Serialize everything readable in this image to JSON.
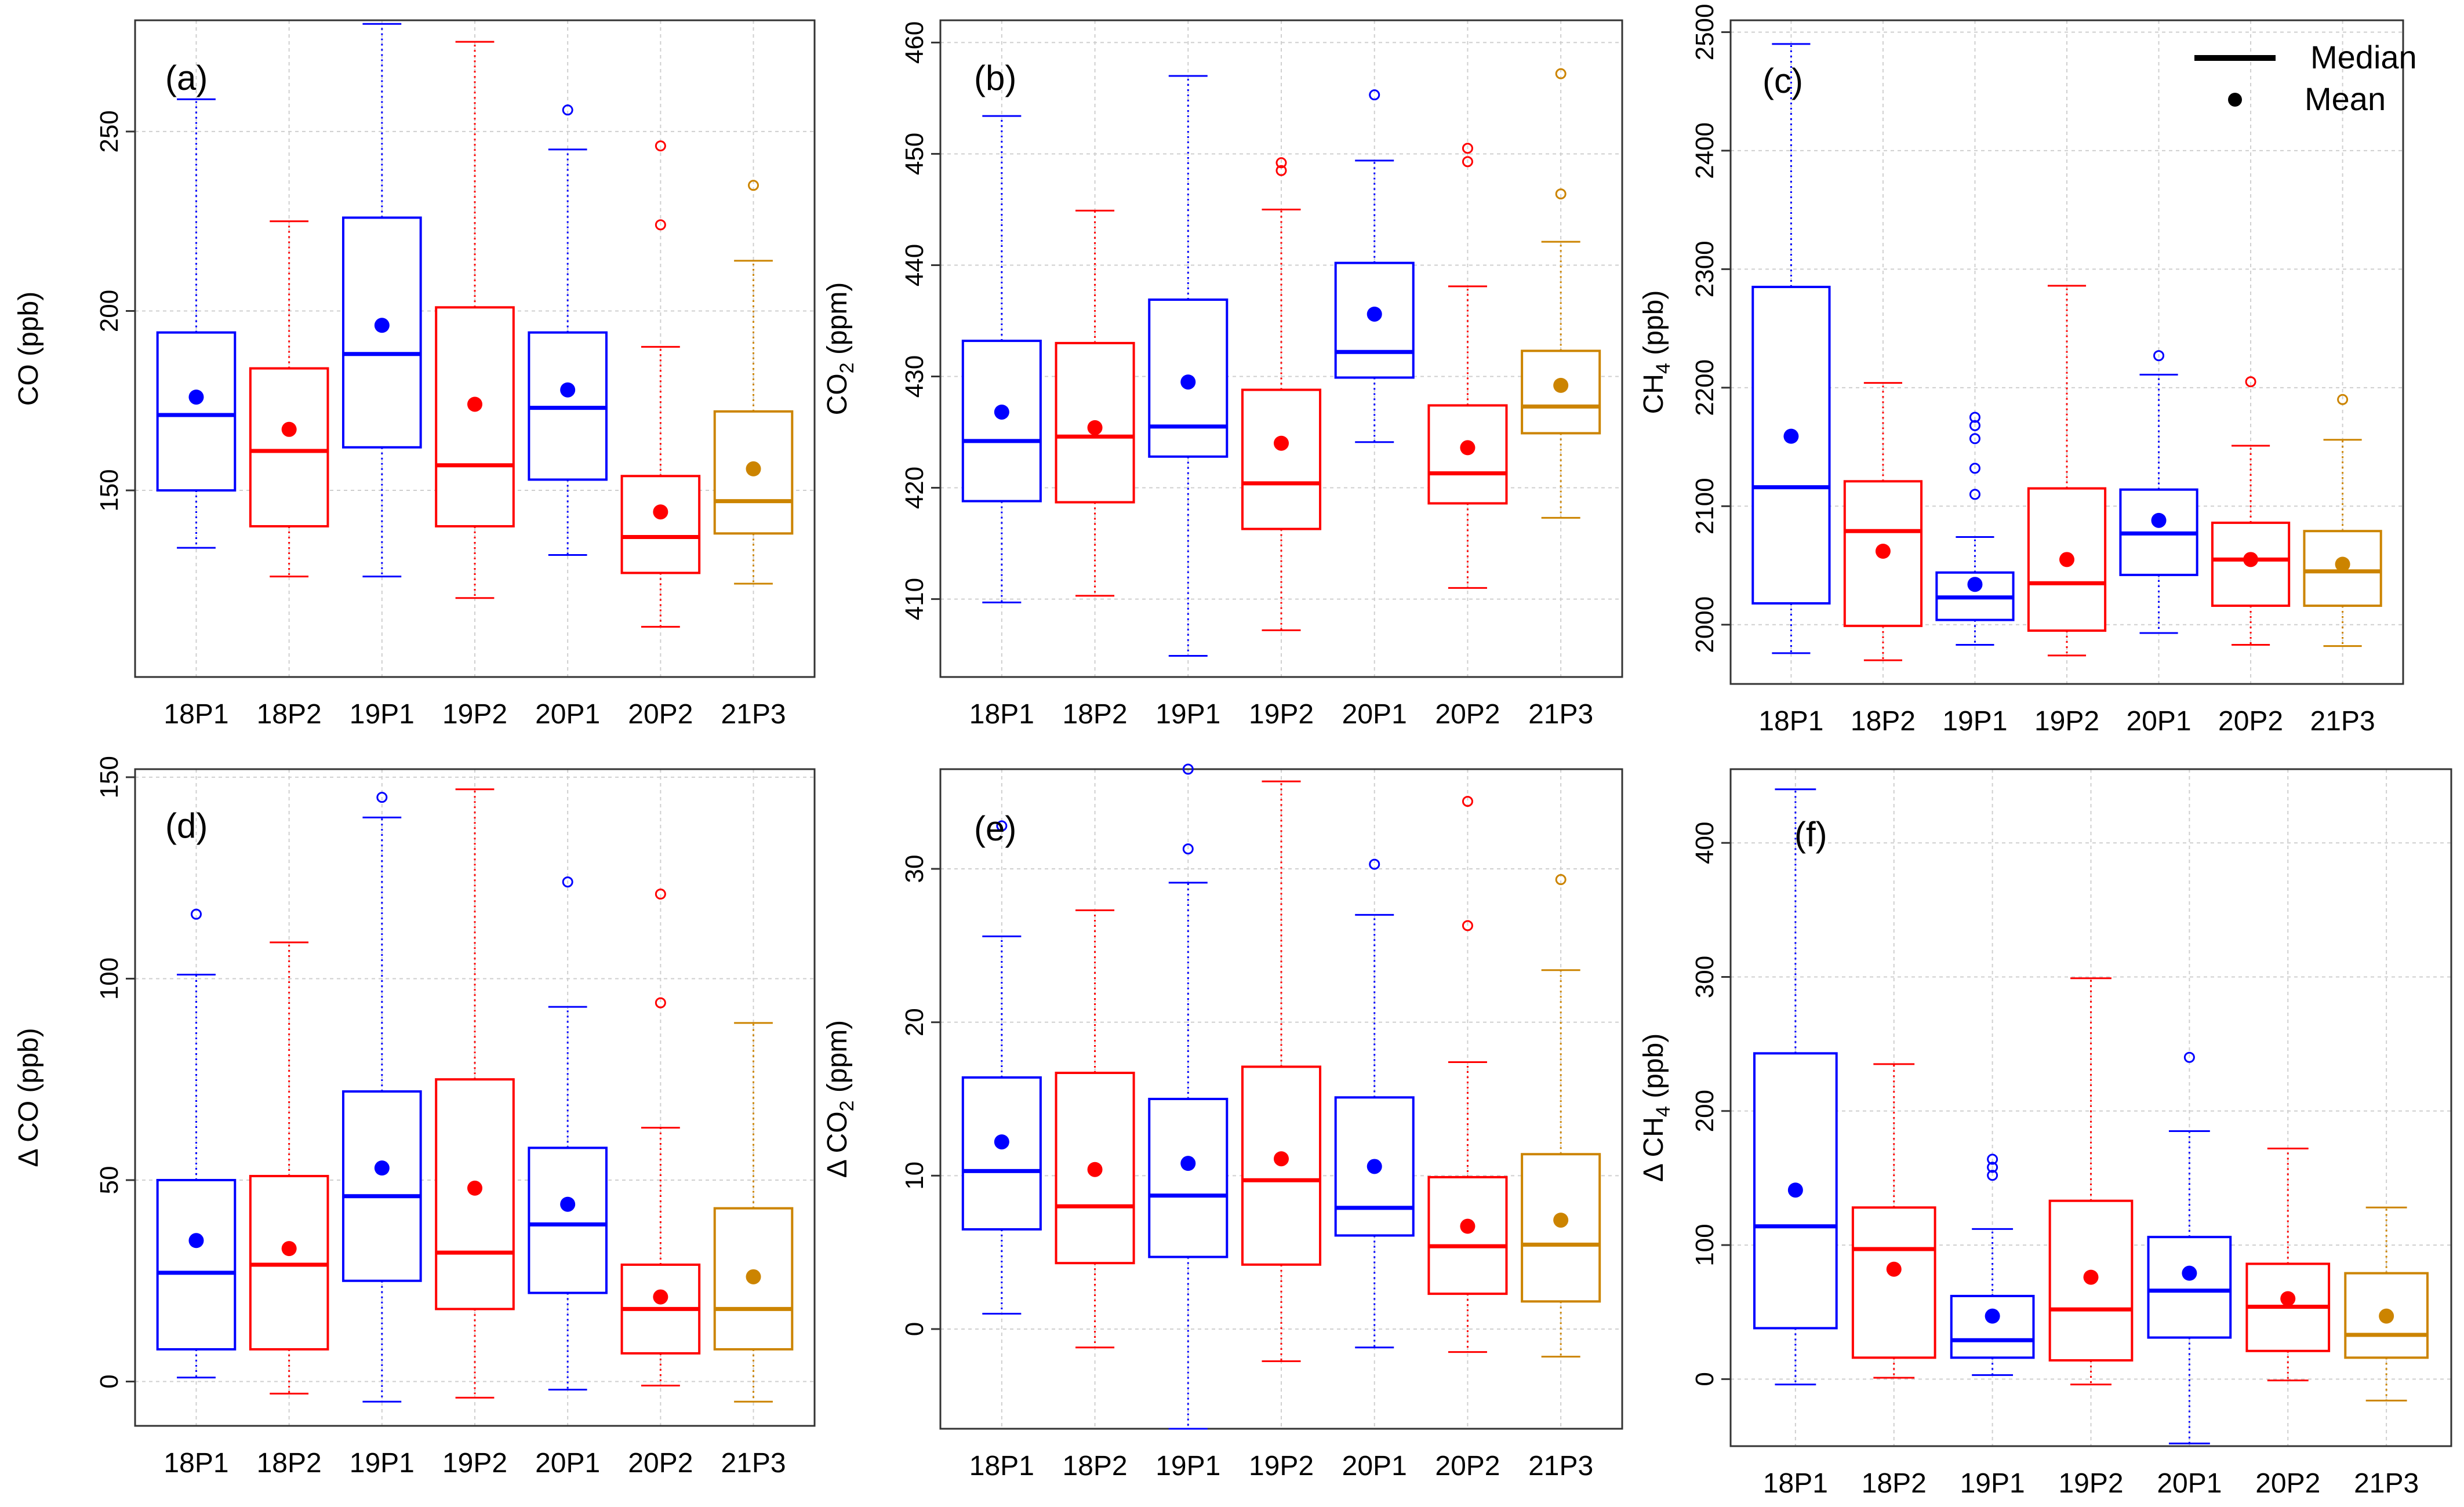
{
  "chart_data": [
    {
      "type": "box",
      "panel": "(a)",
      "ylabel": "CO (ppb)",
      "ylim": [
        98,
        281
      ],
      "yticks": [
        150,
        200,
        250
      ],
      "categories": [
        "18P1",
        "18P2",
        "19P1",
        "19P2",
        "20P1",
        "20P2",
        "21P3"
      ],
      "colors": [
        "#0000ff",
        "#ff0000",
        "#0000ff",
        "#ff0000",
        "#0000ff",
        "#ff0000",
        "#cc8400"
      ],
      "boxes": [
        {
          "category": "18P1",
          "whisker_low": 134,
          "q1": 150,
          "median": 171,
          "q3": 194,
          "whisker_high": 259,
          "mean": 176,
          "outliers": []
        },
        {
          "category": "18P2",
          "whisker_low": 126,
          "q1": 140,
          "median": 161,
          "q3": 184,
          "whisker_high": 225,
          "mean": 167,
          "outliers": []
        },
        {
          "category": "19P1",
          "whisker_low": 126,
          "q1": 162,
          "median": 188,
          "q3": 226,
          "whisker_high": 280,
          "mean": 196,
          "outliers": []
        },
        {
          "category": "19P2",
          "whisker_low": 120,
          "q1": 140,
          "median": 157,
          "q3": 201,
          "whisker_high": 275,
          "mean": 174,
          "outliers": []
        },
        {
          "category": "20P1",
          "whisker_low": 132,
          "q1": 153,
          "median": 173,
          "q3": 194,
          "whisker_high": 245,
          "mean": 178,
          "outliers": [
            256
          ]
        },
        {
          "category": "20P2",
          "whisker_low": 112,
          "q1": 127,
          "median": 137,
          "q3": 154,
          "whisker_high": 190,
          "mean": 144,
          "outliers": [
            224,
            246
          ]
        },
        {
          "category": "21P3",
          "whisker_low": 124,
          "q1": 138,
          "median": 147,
          "q3": 172,
          "whisker_high": 214,
          "mean": 156,
          "outliers": [
            235
          ]
        }
      ]
    },
    {
      "type": "box",
      "panel": "(b)",
      "ylabel": "CO₂ (ppm)",
      "ylabel_main": "CO",
      "ylabel_sub": "2",
      "ylabel_unit": " (ppm)",
      "ylim": [
        403,
        462
      ],
      "yticks": [
        410,
        420,
        430,
        440,
        450,
        460
      ],
      "categories": [
        "18P1",
        "18P2",
        "19P1",
        "19P2",
        "20P1",
        "20P2",
        "21P3"
      ],
      "colors": [
        "#0000ff",
        "#ff0000",
        "#0000ff",
        "#ff0000",
        "#0000ff",
        "#ff0000",
        "#cc8400"
      ],
      "boxes": [
        {
          "category": "18P1",
          "whisker_low": 409.7,
          "q1": 418.8,
          "median": 424.2,
          "q3": 433.2,
          "whisker_high": 453.4,
          "mean": 426.8,
          "outliers": []
        },
        {
          "category": "18P2",
          "whisker_low": 410.3,
          "q1": 418.7,
          "median": 424.6,
          "q3": 433.0,
          "whisker_high": 444.9,
          "mean": 425.4,
          "outliers": []
        },
        {
          "category": "19P1",
          "whisker_low": 404.9,
          "q1": 422.8,
          "median": 425.5,
          "q3": 436.9,
          "whisker_high": 457.0,
          "mean": 429.5,
          "outliers": []
        },
        {
          "category": "19P2",
          "whisker_low": 407.2,
          "q1": 416.3,
          "median": 420.4,
          "q3": 428.8,
          "whisker_high": 445.0,
          "mean": 424.0,
          "outliers": [
            448.5,
            449.2
          ]
        },
        {
          "category": "20P1",
          "whisker_low": 424.1,
          "q1": 429.9,
          "median": 432.2,
          "q3": 440.2,
          "whisker_high": 449.4,
          "mean": 435.6,
          "outliers": [
            455.3
          ]
        },
        {
          "category": "20P2",
          "whisker_low": 411.0,
          "q1": 418.6,
          "median": 421.3,
          "q3": 427.4,
          "whisker_high": 438.1,
          "mean": 423.6,
          "outliers": [
            449.3,
            450.5
          ]
        },
        {
          "category": "21P3",
          "whisker_low": 417.3,
          "q1": 424.9,
          "median": 427.3,
          "q3": 432.3,
          "whisker_high": 442.1,
          "mean": 429.2,
          "outliers": [
            446.4,
            457.2
          ]
        }
      ]
    },
    {
      "type": "box",
      "panel": "(c)",
      "ylabel": "CH₄ (ppb)",
      "ylabel_main": "CH",
      "ylabel_sub": "4",
      "ylabel_unit": " (ppb)",
      "ylim": [
        1950,
        2510
      ],
      "yticks": [
        2000,
        2100,
        2200,
        2300,
        2400,
        2500
      ],
      "categories": [
        "18P1",
        "18P2",
        "19P1",
        "19P2",
        "20P1",
        "20P2",
        "21P3"
      ],
      "colors": [
        "#0000ff",
        "#ff0000",
        "#0000ff",
        "#ff0000",
        "#0000ff",
        "#ff0000",
        "#cc8400"
      ],
      "boxes": [
        {
          "category": "18P1",
          "whisker_low": 1976,
          "q1": 2018,
          "median": 2116,
          "q3": 2285,
          "whisker_high": 2490,
          "mean": 2159,
          "outliers": []
        },
        {
          "category": "18P2",
          "whisker_low": 1970,
          "q1": 1999,
          "median": 2079,
          "q3": 2121,
          "whisker_high": 2204,
          "mean": 2062,
          "outliers": []
        },
        {
          "category": "19P1",
          "whisker_low": 1983,
          "q1": 2004,
          "median": 2023,
          "q3": 2044,
          "whisker_high": 2074,
          "mean": 2034,
          "outliers": [
            2110,
            2132,
            2157,
            2168,
            2175
          ]
        },
        {
          "category": "19P2",
          "whisker_low": 1974,
          "q1": 1995,
          "median": 2035,
          "q3": 2115,
          "whisker_high": 2286,
          "mean": 2055,
          "outliers": []
        },
        {
          "category": "20P1",
          "whisker_low": 1993,
          "q1": 2042,
          "median": 2077,
          "q3": 2114,
          "whisker_high": 2211,
          "mean": 2088,
          "outliers": [
            2227
          ]
        },
        {
          "category": "20P2",
          "whisker_low": 1983,
          "q1": 2016,
          "median": 2055,
          "q3": 2086,
          "whisker_high": 2151,
          "mean": 2055,
          "outliers": [
            2205
          ]
        },
        {
          "category": "21P3",
          "whisker_low": 1982,
          "q1": 2016,
          "median": 2045,
          "q3": 2079,
          "whisker_high": 2156,
          "mean": 2051,
          "outliers": [
            2190
          ]
        }
      ],
      "legend": [
        {
          "label": "Median",
          "style": "line"
        },
        {
          "label": "Mean",
          "style": "dot"
        }
      ]
    },
    {
      "type": "box",
      "panel": "(d)",
      "ylabel": "Δ CO (ppb)",
      "ylim": [
        -11,
        152
      ],
      "yticks": [
        0,
        50,
        100,
        150
      ],
      "categories": [
        "18P1",
        "18P2",
        "19P1",
        "19P2",
        "20P1",
        "20P2",
        "21P3"
      ],
      "colors": [
        "#0000ff",
        "#ff0000",
        "#0000ff",
        "#ff0000",
        "#0000ff",
        "#ff0000",
        "#cc8400"
      ],
      "boxes": [
        {
          "category": "18P1",
          "whisker_low": 1,
          "q1": 8,
          "median": 27,
          "q3": 50,
          "whisker_high": 101,
          "mean": 35,
          "outliers": [
            116
          ]
        },
        {
          "category": "18P2",
          "whisker_low": -3,
          "q1": 8,
          "median": 29,
          "q3": 51,
          "whisker_high": 109,
          "mean": 33,
          "outliers": []
        },
        {
          "category": "19P1",
          "whisker_low": -5,
          "q1": 25,
          "median": 46,
          "q3": 72,
          "whisker_high": 140,
          "mean": 53,
          "outliers": [
            145
          ]
        },
        {
          "category": "19P2",
          "whisker_low": -4,
          "q1": 18,
          "median": 32,
          "q3": 75,
          "whisker_high": 147,
          "mean": 48,
          "outliers": []
        },
        {
          "category": "20P1",
          "whisker_low": -2,
          "q1": 22,
          "median": 39,
          "q3": 58,
          "whisker_high": 93,
          "mean": 44,
          "outliers": [
            124
          ]
        },
        {
          "category": "20P2",
          "whisker_low": -1,
          "q1": 7,
          "median": 18,
          "q3": 29,
          "whisker_high": 63,
          "mean": 21,
          "outliers": [
            94,
            121
          ]
        },
        {
          "category": "21P3",
          "whisker_low": -5,
          "q1": 8,
          "median": 18,
          "q3": 43,
          "whisker_high": 89,
          "mean": 26,
          "outliers": []
        }
      ]
    },
    {
      "type": "box",
      "panel": "(e)",
      "ylabel": "Δ CO₂ (ppm)",
      "ylabel_main": "Δ CO",
      "ylabel_sub": "2",
      "ylabel_unit": " (ppm)",
      "ylim": [
        -6.5,
        36.5
      ],
      "yticks": [
        0,
        10,
        20,
        30
      ],
      "categories": [
        "18P1",
        "18P2",
        "19P1",
        "19P2",
        "20P1",
        "20P2",
        "21P3"
      ],
      "colors": [
        "#0000ff",
        "#ff0000",
        "#0000ff",
        "#ff0000",
        "#0000ff",
        "#ff0000",
        "#cc8400"
      ],
      "boxes": [
        {
          "category": "18P1",
          "whisker_low": 1,
          "q1": 6.5,
          "median": 10.3,
          "q3": 16.4,
          "whisker_high": 25.6,
          "mean": 12.2,
          "outliers": [
            32.8
          ]
        },
        {
          "category": "18P2",
          "whisker_low": -1.2,
          "q1": 4.3,
          "median": 8.0,
          "q3": 16.7,
          "whisker_high": 27.3,
          "mean": 10.4,
          "outliers": []
        },
        {
          "category": "19P1",
          "whisker_low": -6.5,
          "q1": 4.7,
          "median": 8.7,
          "q3": 15.0,
          "whisker_high": 29.1,
          "mean": 10.8,
          "outliers": [
            31.3,
            36.5
          ]
        },
        {
          "category": "19P2",
          "whisker_low": -2.1,
          "q1": 4.2,
          "median": 9.7,
          "q3": 17.1,
          "whisker_high": 35.7,
          "mean": 11.1,
          "outliers": []
        },
        {
          "category": "20P1",
          "whisker_low": -1.2,
          "q1": 6.1,
          "median": 7.9,
          "q3": 15.1,
          "whisker_high": 27.0,
          "mean": 10.6,
          "outliers": [
            30.3
          ]
        },
        {
          "category": "20P2",
          "whisker_low": -1.5,
          "q1": 2.3,
          "median": 5.4,
          "q3": 9.9,
          "whisker_high": 17.4,
          "mean": 6.7,
          "outliers": [
            26.3,
            34.4
          ]
        },
        {
          "category": "21P3",
          "whisker_low": -1.8,
          "q1": 1.8,
          "median": 5.5,
          "q3": 11.4,
          "whisker_high": 23.4,
          "mean": 7.1,
          "outliers": [
            29.3
          ]
        }
      ]
    },
    {
      "type": "box",
      "panel": "(f)",
      "ylabel": "Δ CH₄ (ppb)",
      "ylabel_main": "Δ CH",
      "ylabel_sub": "4",
      "ylabel_unit": " (ppb)",
      "ylim": [
        -50,
        455
      ],
      "yticks": [
        0,
        100,
        200,
        300,
        400
      ],
      "categories": [
        "18P1",
        "18P2",
        "19P1",
        "19P2",
        "20P1",
        "20P2",
        "21P3"
      ],
      "colors": [
        "#0000ff",
        "#ff0000",
        "#0000ff",
        "#ff0000",
        "#0000ff",
        "#ff0000",
        "#cc8400"
      ],
      "boxes": [
        {
          "category": "18P1",
          "whisker_low": -4,
          "q1": 38,
          "median": 114,
          "q3": 243,
          "whisker_high": 440,
          "mean": 141,
          "outliers": []
        },
        {
          "category": "18P2",
          "whisker_low": 1,
          "q1": 16,
          "median": 97,
          "q3": 128,
          "whisker_high": 235,
          "mean": 82,
          "outliers": []
        },
        {
          "category": "19P1",
          "whisker_low": 3,
          "q1": 16,
          "median": 29,
          "q3": 62,
          "whisker_high": 112,
          "mean": 47,
          "outliers": [
            152,
            158,
            164
          ]
        },
        {
          "category": "19P2",
          "whisker_low": -4,
          "q1": 14,
          "median": 52,
          "q3": 133,
          "whisker_high": 299,
          "mean": 76,
          "outliers": []
        },
        {
          "category": "20P1",
          "whisker_low": -48,
          "q1": 31,
          "median": 66,
          "q3": 106,
          "whisker_high": 185,
          "mean": 79,
          "outliers": [
            240
          ]
        },
        {
          "category": "20P2",
          "whisker_low": -1,
          "q1": 21,
          "median": 54,
          "q3": 86,
          "whisker_high": 172,
          "mean": 60,
          "outliers": []
        },
        {
          "category": "21P3",
          "whisker_low": -16,
          "q1": 16,
          "median": 33,
          "q3": 79,
          "whisker_high": 128,
          "mean": 47,
          "outliers": []
        }
      ]
    }
  ]
}
